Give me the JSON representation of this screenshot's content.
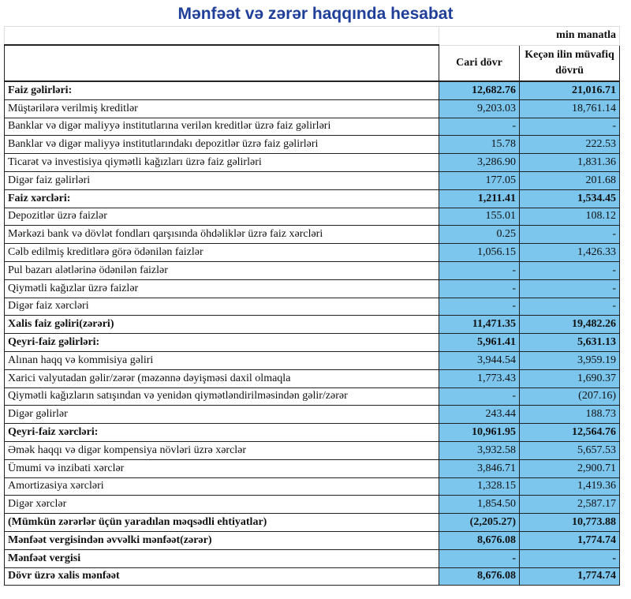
{
  "title": "Mənfəət və zərər haqqında hesabat",
  "unit": "min manatla",
  "headers": {
    "current": "Cari dövr",
    "previous": "Keçən ilin müvafiq dövrü"
  },
  "colors": {
    "value_cell": "#7cc6ee",
    "title": "#1f3f9a"
  },
  "rows": [
    {
      "label": "Faiz gəlirləri:",
      "current": "12,682.76",
      "previous": "21,016.71",
      "bold": true
    },
    {
      "label": "Müştərilərə verilmiş kreditlər",
      "current": "9,203.03",
      "previous": "18,761.14"
    },
    {
      "label": "Banklar və digər maliyyə institutlarına verilən kreditlər üzrə faiz gəlirləri",
      "current": "-",
      "previous": "-"
    },
    {
      "label": "Banklar və digər maliyyə institutlarındakı depozitlər üzrə faiz gəlirləri",
      "current": "15.78",
      "previous": "222.53"
    },
    {
      "label": "Ticarət və investisiya qiymətli kağızları üzrə faiz gəlirləri",
      "current": "3,286.90",
      "previous": "1,831.36"
    },
    {
      "label": "Digər faiz gəlirləri",
      "current": "177.05",
      "previous": "201.68"
    },
    {
      "label": "Faiz xərcləri:",
      "current": "1,211.41",
      "previous": "1,534.45",
      "bold": true
    },
    {
      "label": "Depozitlər üzrə faizlər",
      "current": "155.01",
      "previous": "108.12"
    },
    {
      "label": "Mərkəzi bank və dövlət fondları qarşısında öhdəliklər üzrə faiz xərcləri",
      "current": "0.25",
      "previous": "-"
    },
    {
      "label": "Cəlb edilmiş kreditlərə görə ödənilən faizlər",
      "current": "1,056.15",
      "previous": "1,426.33"
    },
    {
      "label": "Pul bazarı alətlərinə ödənilən faizlər",
      "current": "-",
      "previous": "-"
    },
    {
      "label": "Qiymətli kağızlar üzrə faizlər",
      "current": "-",
      "previous": "-"
    },
    {
      "label": "Digər faiz xərcləri",
      "current": "-",
      "previous": "-"
    },
    {
      "label": "Xalis faiz gəliri(zərəri)",
      "current": "11,471.35",
      "previous": "19,482.26",
      "bold": true
    },
    {
      "label": "Qeyri-faiz gəlirləri:",
      "current": "5,961.41",
      "previous": "5,631.13",
      "bold": true
    },
    {
      "label": "Alınan haqq və kommisiya gəliri",
      "current": "3,944.54",
      "previous": "3,959.19"
    },
    {
      "label": "Xarici valyutadan gəlir/zərər (məzənnə dəyişməsi daxil olmaqla",
      "current": "1,773.43",
      "previous": "1,690.37"
    },
    {
      "label": "Qiymətli kağızların satışından və yenidən qiymətləndirilməsindən gəlir/zərər",
      "current": "-",
      "previous": "(207.16)"
    },
    {
      "label": "Digər gəlirlər",
      "current": "243.44",
      "previous": "188.73"
    },
    {
      "label": "Qeyri-faiz xərcləri:",
      "current": "10,961.95",
      "previous": "12,564.76",
      "bold": true
    },
    {
      "label": "Əmək haqqı və digər kompensiya növləri üzrə xərclər",
      "current": "3,932.58",
      "previous": "5,657.53"
    },
    {
      "label": "Ümumi və inzibati xərclər",
      "current": "3,846.71",
      "previous": "2,900.71"
    },
    {
      "label": "Amortizasiya xərcləri",
      "current": "1,328.15",
      "previous": "1,419.36"
    },
    {
      "label": "Digər xərclər",
      "current": "1,854.50",
      "previous": "2,587.17"
    },
    {
      "label": "(Mümkün zərərlər üçün yaradılan məqsədli ehtiyatlar)",
      "current": "(2,205.27)",
      "previous": "10,773.88",
      "bold": true
    },
    {
      "label": "Mənfəət vergisindən əvvəlki mənfəət(zərər)",
      "current": "8,676.08",
      "previous": "1,774.74",
      "bold": true
    },
    {
      "label": "Mənfəət vergisi",
      "current": "-",
      "previous": "-",
      "bold": true
    },
    {
      "label": "Dövr üzrə xalis mənfəət",
      "current": "8,676.08",
      "previous": "1,774.74",
      "bold": true
    }
  ]
}
